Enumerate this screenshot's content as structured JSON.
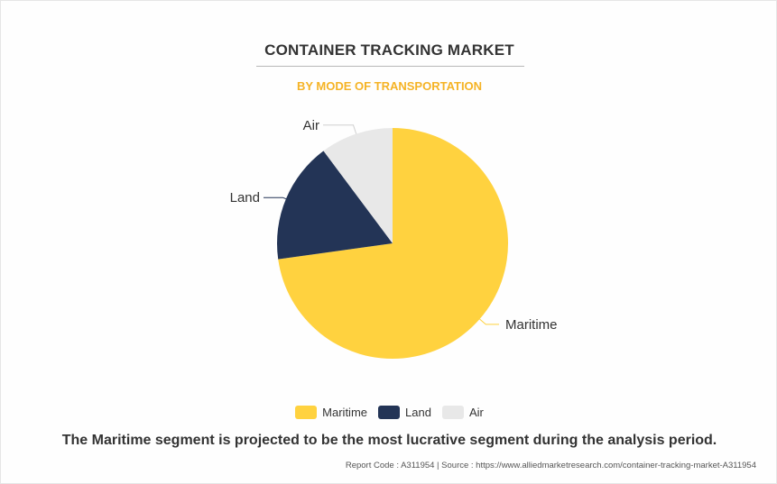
{
  "chart_data": {
    "type": "pie",
    "title": "CONTAINER TRACKING MARKET",
    "subtitle": "BY MODE OF TRANSPORTATION",
    "slices": [
      {
        "label": "Maritime",
        "value": 72.8,
        "color": "#ffd23f"
      },
      {
        "label": "Land",
        "value": 17.0,
        "color": "#233456"
      },
      {
        "label": "Air",
        "value": 10.2,
        "color": "#e8e8e8"
      }
    ],
    "legend": {
      "position": "bottom",
      "entries": [
        "Maritime",
        "Land",
        "Air"
      ]
    }
  },
  "headline": "The Maritime segment is projected to be the most lucrative segment during the analysis period.",
  "footer": "Report Code : A311954  |  Source : https://www.alliedmarketresearch.com/container-tracking-market-A311954"
}
